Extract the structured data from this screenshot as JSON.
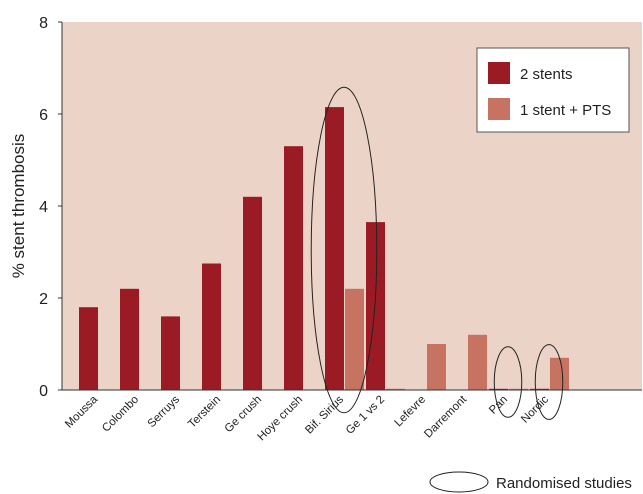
{
  "chart_data": {
    "type": "bar",
    "ylabel": "% stent thrombosis",
    "ylim": [
      0,
      8
    ],
    "yticks": [
      0,
      2,
      4,
      6,
      8
    ],
    "grid": false,
    "legend_position": "top-right",
    "colors": {
      "background": "#ecd3c8",
      "two_stents": "#9b1b24",
      "one_stent": "#c67362",
      "frame": "#ffffff"
    },
    "categories": [
      "Moussa",
      "Colombo",
      "Serruys",
      "Terstein",
      "Ge crush",
      "Hoye crush",
      "Bif. Sirius",
      "Ge 1 vs 2",
      "Lefevre",
      "Darremont",
      "Pan",
      "Nordic"
    ],
    "series": [
      {
        "name": "2 stents",
        "values": [
          1.8,
          2.2,
          1.6,
          2.75,
          4.2,
          5.3,
          6.15,
          3.65,
          null,
          null,
          0.0,
          0.0
        ]
      },
      {
        "name": "1 stent + PTS",
        "values": [
          null,
          null,
          null,
          null,
          null,
          null,
          2.2,
          0.0,
          1.0,
          1.2,
          0.0,
          0.7
        ]
      }
    ],
    "randomised_studies": [
      "Bif. Sirius",
      "Pan",
      "Nordic"
    ],
    "annotation": "Randomised studies"
  }
}
